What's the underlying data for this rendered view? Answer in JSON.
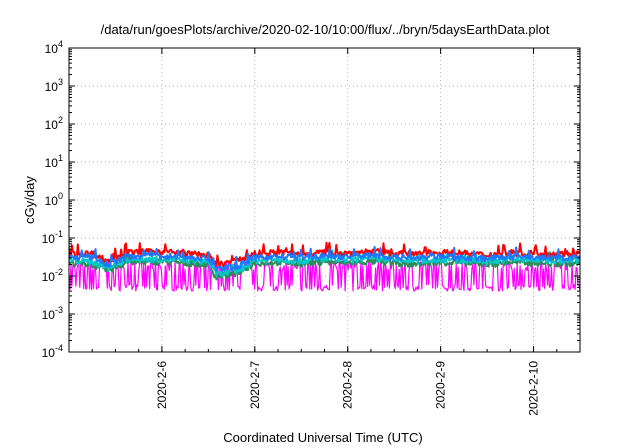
{
  "chart_data": {
    "type": "line",
    "title": "/data/run/goesPlots/archive/2020-02-10/10:00/flux/../bryn/5daysEarthData.plot",
    "xlabel": "Coordinated Universal Time (UTC)",
    "ylabel": "cGy/day",
    "x_scale": "time",
    "y_scale": "log",
    "xlim": [
      "2020-02-05T00:00",
      "2020-02-10T12:00"
    ],
    "ylim": [
      0.0001,
      10000
    ],
    "x_ticks": [
      "2020-02-06",
      "2020-02-07",
      "2020-02-08",
      "2020-02-09",
      "2020-02-10"
    ],
    "x_tick_labels": [
      "2020-2-6",
      "2020-2-7",
      "2020-2-8",
      "2020-2-9",
      "2020-2-10"
    ],
    "y_ticks": [
      {
        "base": "10",
        "exp": "-4",
        "value": 0.0001
      },
      {
        "base": "10",
        "exp": "-3",
        "value": 0.001
      },
      {
        "base": "10",
        "exp": "-2",
        "value": 0.01
      },
      {
        "base": "10",
        "exp": "-1",
        "value": 0.1
      },
      {
        "base": "10",
        "exp": "0",
        "value": 1
      },
      {
        "base": "10",
        "exp": "1",
        "value": 10
      },
      {
        "base": "10",
        "exp": "2",
        "value": 100
      },
      {
        "base": "10",
        "exp": "3",
        "value": 1000
      },
      {
        "base": "10",
        "exp": "4",
        "value": 10000
      }
    ],
    "grid": true,
    "legend": "none",
    "series": [
      {
        "color": "#ff0000",
        "x": [
          "2020-02-05T00:00",
          "2020-02-05T06:00",
          "2020-02-05T10:00",
          "2020-02-05T15:00",
          "2020-02-06T00:00",
          "2020-02-06T05:00",
          "2020-02-06T12:00",
          "2020-02-06T14:00",
          "2020-02-06T20:00",
          "2020-02-07T00:00",
          "2020-02-07T06:00",
          "2020-02-07T12:00",
          "2020-02-07T18:00",
          "2020-02-08T00:00",
          "2020-02-08T06:00",
          "2020-02-08T12:00",
          "2020-02-08T18:00",
          "2020-02-09T00:00",
          "2020-02-09T06:00",
          "2020-02-09T12:00",
          "2020-02-09T18:00",
          "2020-02-10T00:00",
          "2020-02-10T06:00",
          "2020-02-10T12:00"
        ],
        "y": [
          0.038,
          0.04,
          0.025,
          0.042,
          0.045,
          0.04,
          0.036,
          0.02,
          0.026,
          0.04,
          0.042,
          0.038,
          0.043,
          0.04,
          0.045,
          0.04,
          0.038,
          0.042,
          0.04,
          0.036,
          0.042,
          0.04,
          0.038,
          0.04
        ]
      },
      {
        "color": "#2e8b57",
        "x": [
          "2020-02-05T00:00",
          "2020-02-05T06:00",
          "2020-02-05T10:00",
          "2020-02-05T15:00",
          "2020-02-06T00:00",
          "2020-02-06T05:00",
          "2020-02-06T12:00",
          "2020-02-06T14:00",
          "2020-02-06T20:00",
          "2020-02-07T00:00",
          "2020-02-07T06:00",
          "2020-02-07T12:00",
          "2020-02-07T18:00",
          "2020-02-08T00:00",
          "2020-02-08T06:00",
          "2020-02-08T12:00",
          "2020-02-08T18:00",
          "2020-02-09T00:00",
          "2020-02-09T06:00",
          "2020-02-09T12:00",
          "2020-02-09T18:00",
          "2020-02-10T00:00",
          "2020-02-10T06:00",
          "2020-02-10T12:00"
        ],
        "y": [
          0.022,
          0.02,
          0.014,
          0.023,
          0.024,
          0.022,
          0.02,
          0.0095,
          0.012,
          0.022,
          0.023,
          0.021,
          0.024,
          0.022,
          0.024,
          0.022,
          0.021,
          0.023,
          0.022,
          0.02,
          0.023,
          0.022,
          0.021,
          0.022
        ]
      },
      {
        "color": "#00c8c8",
        "x": [
          "2020-02-05T00:00",
          "2020-02-05T06:00",
          "2020-02-05T10:00",
          "2020-02-05T15:00",
          "2020-02-06T00:00",
          "2020-02-06T05:00",
          "2020-02-06T12:00",
          "2020-02-06T14:00",
          "2020-02-06T20:00",
          "2020-02-07T00:00",
          "2020-02-07T06:00",
          "2020-02-07T12:00",
          "2020-02-07T18:00",
          "2020-02-08T00:00",
          "2020-02-08T06:00",
          "2020-02-08T12:00",
          "2020-02-08T18:00",
          "2020-02-09T00:00",
          "2020-02-09T06:00",
          "2020-02-09T12:00",
          "2020-02-09T18:00",
          "2020-02-10T00:00",
          "2020-02-10T06:00",
          "2020-02-10T12:00"
        ],
        "y": [
          0.026,
          0.024,
          0.016,
          0.027,
          0.028,
          0.026,
          0.024,
          0.011,
          0.014,
          0.026,
          0.027,
          0.025,
          0.028,
          0.026,
          0.028,
          0.026,
          0.025,
          0.027,
          0.026,
          0.024,
          0.027,
          0.026,
          0.025,
          0.026
        ]
      },
      {
        "color": "#1e78ff",
        "x": [
          "2020-02-05T00:00",
          "2020-02-05T06:00",
          "2020-02-05T10:00",
          "2020-02-05T15:00",
          "2020-02-06T00:00",
          "2020-02-06T05:00",
          "2020-02-06T12:00",
          "2020-02-06T14:00",
          "2020-02-06T20:00",
          "2020-02-07T00:00",
          "2020-02-07T06:00",
          "2020-02-07T12:00",
          "2020-02-07T18:00",
          "2020-02-08T00:00",
          "2020-02-08T06:00",
          "2020-02-08T12:00",
          "2020-02-08T18:00",
          "2020-02-09T00:00",
          "2020-02-09T06:00",
          "2020-02-09T12:00",
          "2020-02-09T18:00",
          "2020-02-10T00:00",
          "2020-02-10T06:00",
          "2020-02-10T12:00"
        ],
        "y": [
          0.03,
          0.032,
          0.02,
          0.033,
          0.035,
          0.031,
          0.029,
          0.015,
          0.019,
          0.031,
          0.033,
          0.03,
          0.034,
          0.032,
          0.036,
          0.031,
          0.03,
          0.033,
          0.031,
          0.029,
          0.033,
          0.031,
          0.03,
          0.031
        ]
      },
      {
        "color": "#ff00ff",
        "x": [
          "2020-02-05T00:00",
          "2020-02-05T06:00",
          "2020-02-05T10:00",
          "2020-02-05T15:00",
          "2020-02-06T00:00",
          "2020-02-06T05:00",
          "2020-02-06T12:00",
          "2020-02-06T14:00",
          "2020-02-06T20:00",
          "2020-02-07T00:00",
          "2020-02-07T06:00",
          "2020-02-07T12:00",
          "2020-02-07T18:00",
          "2020-02-08T00:00",
          "2020-02-08T06:00",
          "2020-02-08T12:00",
          "2020-02-08T18:00",
          "2020-02-09T00:00",
          "2020-02-09T06:00",
          "2020-02-09T12:00",
          "2020-02-09T18:00",
          "2020-02-10T00:00",
          "2020-02-10T06:00",
          "2020-02-10T12:00"
        ],
        "y": [
          0.005,
          0.02,
          0.006,
          0.005,
          0.018,
          0.005,
          0.02,
          0.005,
          0.006,
          0.005,
          0.02,
          0.005,
          0.018,
          0.006,
          0.02,
          0.005,
          0.019,
          0.005,
          0.02,
          0.006,
          0.018,
          0.005,
          0.02,
          0.005
        ],
        "y_low": 0.004,
        "y_high": 0.025
      }
    ]
  }
}
